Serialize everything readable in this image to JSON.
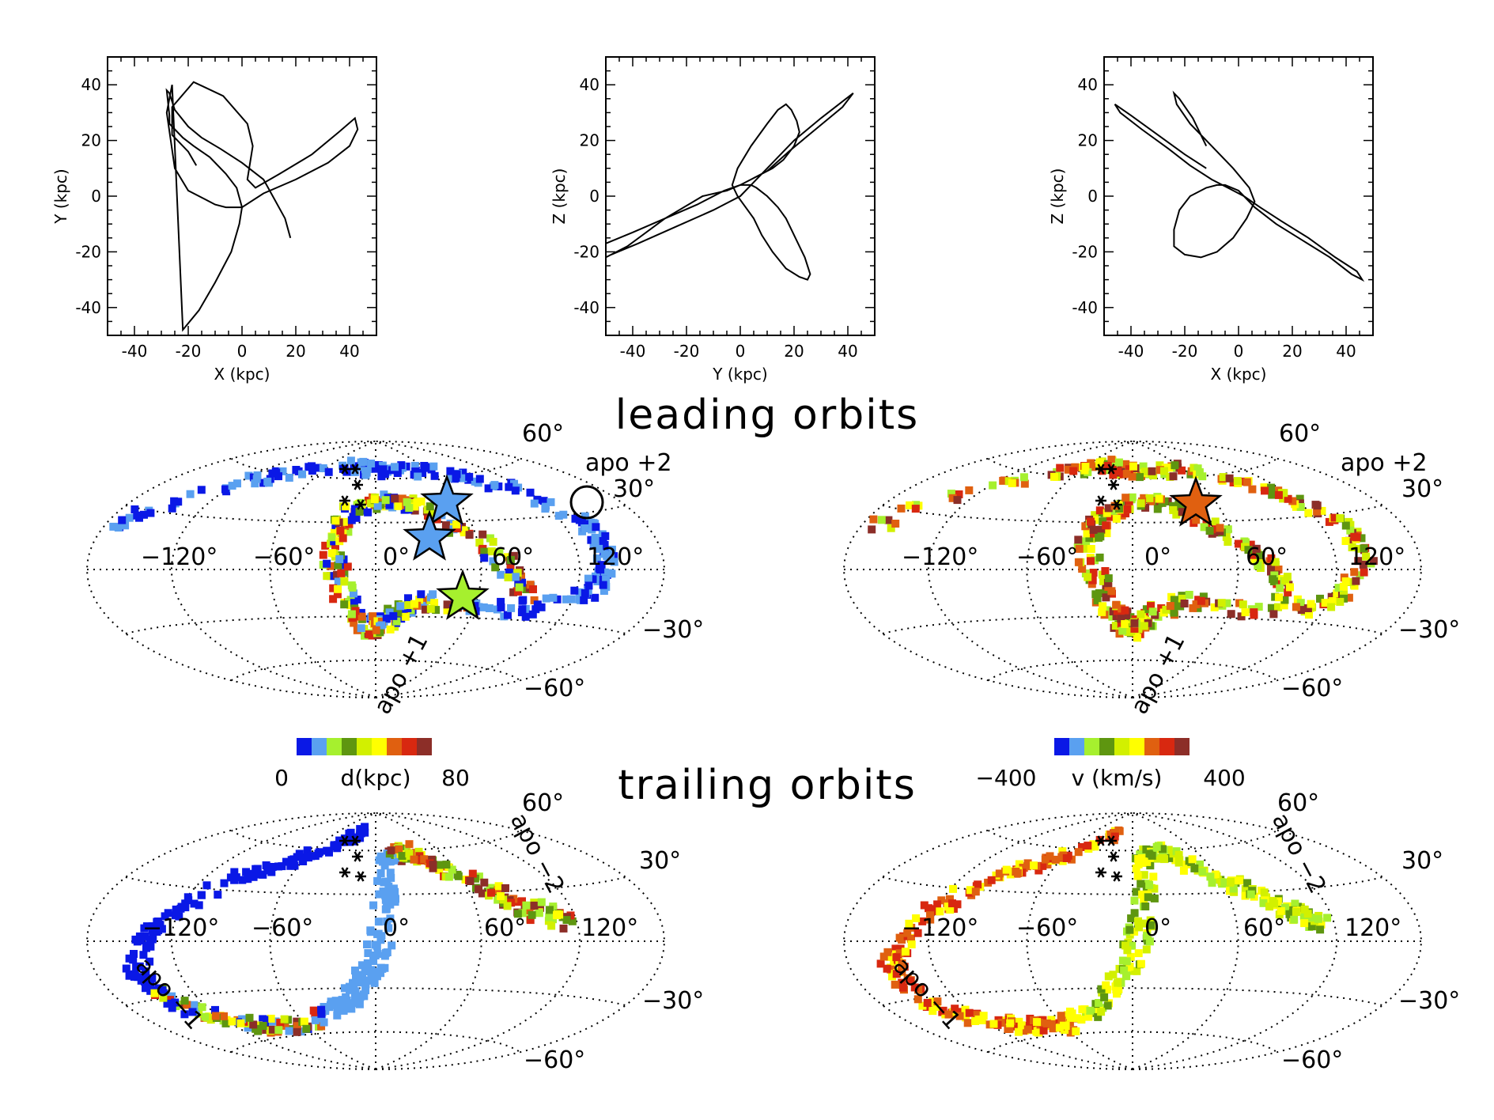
{
  "titles": {
    "leading": "leading orbits",
    "trailing": "trailing orbits"
  },
  "colorbars": {
    "distance": {
      "min_label": "0",
      "label": "d(kpc)",
      "max_label": "80",
      "colors": [
        "#0a18e6",
        "#5aa0f0",
        "#a6f02e",
        "#5e9610",
        "#d2f000",
        "#ffff00",
        "#e06010",
        "#d82810",
        "#8c2e28"
      ]
    },
    "velocity": {
      "min_label": "−400",
      "label": "v (km/s)",
      "max_label": "400",
      "colors": [
        "#0a18e6",
        "#5aa0f0",
        "#a6f02e",
        "#5e9610",
        "#d2f000",
        "#ffff00",
        "#e06010",
        "#d82810",
        "#8c2e28"
      ]
    }
  },
  "sky_labels": {
    "lon": [
      "−120°",
      "−60°",
      "0°",
      "60°",
      "120°"
    ],
    "lat_pos": [
      "60°",
      "30°"
    ],
    "lat_neg": [
      "−30°",
      "−60°"
    ]
  },
  "annotations": {
    "apo_plus2": "apo +2",
    "apo_plus1": "apo +1",
    "apo_minus2": "apo −2",
    "apo_minus1": "apo −1"
  },
  "chart_data": [
    {
      "type": "line",
      "panel": "orbit-xy",
      "xlabel": "X (kpc)",
      "ylabel": "Y (kpc)",
      "xlim": [
        -50,
        50
      ],
      "ylim": [
        -50,
        50
      ],
      "xticks": [
        -40,
        -20,
        0,
        20,
        40
      ],
      "yticks": [
        -40,
        -20,
        0,
        20,
        40
      ],
      "x": [
        -17,
        -20,
        -26,
        -26,
        -18,
        -7,
        2,
        4,
        3,
        2,
        5,
        14,
        26,
        36,
        42,
        43,
        40,
        32,
        20,
        8,
        0,
        -6,
        -10,
        -14,
        -20,
        -25,
        -28,
        -26,
        -22,
        -16,
        -10,
        -4,
        -1,
        0,
        -2,
        -6,
        -12,
        -18,
        -22,
        -25,
        -27,
        -27,
        -28,
        -27,
        -25,
        -20,
        -15,
        -8,
        0,
        8,
        12,
        16,
        18
      ],
      "y": [
        11,
        16,
        22,
        32,
        41,
        36,
        26,
        18,
        12,
        6,
        3,
        8,
        15,
        23,
        28,
        24,
        18,
        12,
        6,
        1,
        -4,
        -4,
        -3,
        -1,
        2,
        10,
        30,
        40,
        -48,
        -41,
        -31,
        -20,
        -10,
        -4,
        3,
        8,
        14,
        18,
        21,
        24,
        26,
        29,
        38,
        37,
        31,
        25,
        21,
        17,
        12,
        6,
        -1,
        -8,
        -15
      ]
    },
    {
      "type": "line",
      "panel": "orbit-yz",
      "xlabel": "Y (kpc)",
      "ylabel": "Z (kpc)",
      "xlim": [
        -50,
        50
      ],
      "ylim": [
        -50,
        50
      ],
      "xticks": [
        -40,
        -20,
        0,
        20,
        40
      ],
      "yticks": [
        -40,
        -20,
        0,
        20,
        40
      ],
      "x": [
        -50,
        -40,
        -28,
        -16,
        -6,
        0,
        4,
        6,
        10,
        14,
        17,
        19,
        21,
        24,
        26,
        25,
        22,
        17,
        12,
        8,
        5,
        2,
        -1,
        -3,
        -1,
        4,
        10,
        14,
        17,
        19,
        21,
        22,
        20,
        16,
        12,
        8,
        4,
        0,
        -5,
        -14,
        -28,
        -42,
        -50,
        -48,
        -38,
        -24,
        -10,
        0,
        4,
        10,
        20,
        30,
        38,
        42,
        38,
        28,
        18,
        10
      ],
      "y": [
        -17,
        -13,
        -8,
        -3,
        2,
        4,
        4,
        3,
        0,
        -4,
        -8,
        -12,
        -16,
        -22,
        -28,
        -30,
        -29,
        -26,
        -20,
        -14,
        -8,
        -4,
        0,
        4,
        10,
        18,
        26,
        31,
        33,
        31,
        27,
        23,
        18,
        13,
        10,
        8,
        6,
        4,
        2,
        0,
        -8,
        -18,
        -22,
        -21,
        -17,
        -11,
        -5,
        0,
        4,
        10,
        20,
        28,
        34,
        37,
        32,
        24,
        16,
        9
      ]
    },
    {
      "type": "line",
      "panel": "orbit-xz",
      "xlabel": "X (kpc)",
      "ylabel": "Z (kpc)",
      "xlim": [
        -50,
        50
      ],
      "ylim": [
        -50,
        50
      ],
      "xticks": [
        -40,
        -20,
        0,
        20,
        40
      ],
      "yticks": [
        -40,
        -20,
        0,
        20,
        40
      ],
      "x": [
        -12,
        -20,
        -30,
        -40,
        -46,
        -44,
        -36,
        -26,
        -18,
        -10,
        -4,
        2,
        8,
        16,
        26,
        36,
        44,
        46,
        42,
        34,
        24,
        14,
        6,
        0,
        -5,
        -8,
        -12,
        -18,
        -22,
        -24,
        -24,
        -20,
        -14,
        -8,
        -2,
        3,
        6,
        4,
        -2,
        -10,
        -18,
        -23,
        -24,
        -22,
        -17,
        -12
      ],
      "y": [
        10,
        15,
        22,
        29,
        33,
        30,
        24,
        17,
        11,
        6,
        3,
        0,
        -4,
        -9,
        -15,
        -22,
        -27,
        -30,
        -28,
        -22,
        -16,
        -10,
        -4,
        2,
        4,
        4,
        3,
        0,
        -5,
        -12,
        -18,
        -21,
        -22,
        -20,
        -15,
        -8,
        -2,
        3,
        10,
        18,
        26,
        33,
        37,
        35,
        28,
        18
      ]
    }
  ]
}
